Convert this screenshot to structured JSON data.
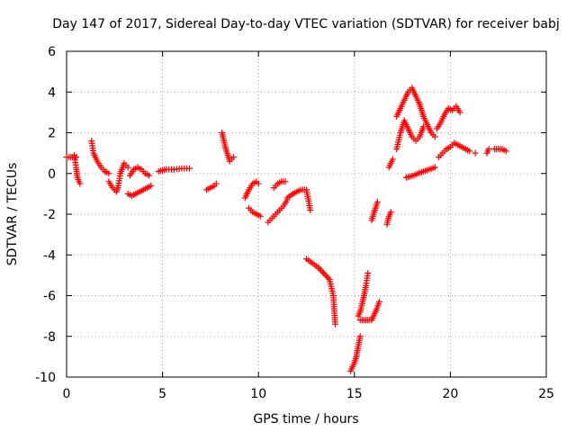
{
  "chart_data": {
    "type": "scatter",
    "title": "Day 147 of 2017, Sidereal Day-to-day VTEC variation (SDTVAR) for receiver babj",
    "xlabel": "GPS time / hours",
    "ylabel": "SDTVAR / TECUs",
    "xlim": [
      0,
      25
    ],
    "ylim": [
      -10,
      6
    ],
    "xticks": [
      0,
      5,
      10,
      15,
      20,
      25
    ],
    "yticks": [
      -10,
      -8,
      -6,
      -4,
      -2,
      0,
      2,
      4,
      6
    ],
    "grid": true,
    "marker": "+",
    "color": "#ff0000",
    "segments": [
      {
        "x": [
          0.0,
          0.3,
          0.5
        ],
        "y": [
          0.8,
          0.8,
          0.8
        ]
      },
      {
        "x": [
          0.4,
          0.5,
          0.55,
          0.6,
          0.65,
          0.7
        ],
        "y": [
          0.9,
          0.3,
          -0.1,
          -0.3,
          -0.4,
          -0.5
        ]
      },
      {
        "x": [
          1.3,
          1.4,
          1.6,
          1.8,
          2.0,
          2.2
        ],
        "y": [
          1.6,
          1.0,
          0.6,
          0.3,
          0.1,
          0.0
        ]
      },
      {
        "x": [
          2.2,
          2.4,
          2.6,
          2.7,
          2.8,
          3.0,
          3.2
        ],
        "y": [
          -0.4,
          -0.7,
          -0.9,
          -0.6,
          0.0,
          0.5,
          0.3
        ]
      },
      {
        "x": [
          3.2,
          3.4,
          3.6,
          3.8,
          4.0,
          4.2,
          4.4
        ],
        "y": [
          -1.0,
          -1.1,
          -1.0,
          -0.9,
          -0.8,
          -0.7,
          -0.6
        ]
      },
      {
        "x": [
          3.3,
          3.5,
          3.7,
          3.9,
          4.1,
          4.3
        ],
        "y": [
          -0.1,
          0.2,
          0.3,
          0.2,
          0.0,
          -0.1
        ]
      },
      {
        "x": [
          4.8,
          5.2,
          5.6,
          6.0,
          6.4
        ],
        "y": [
          0.1,
          0.2,
          0.2,
          0.25,
          0.25
        ]
      },
      {
        "x": [
          7.3,
          7.5,
          7.7,
          7.8
        ],
        "y": [
          -0.8,
          -0.7,
          -0.6,
          -0.5
        ]
      },
      {
        "x": [
          8.1,
          8.2,
          8.3,
          8.4,
          8.5,
          8.6,
          8.7
        ],
        "y": [
          2.0,
          1.6,
          1.2,
          0.9,
          0.6,
          0.7,
          0.8
        ]
      },
      {
        "x": [
          9.3,
          9.5,
          9.7,
          9.9,
          10.0
        ],
        "y": [
          -1.2,
          -0.8,
          -0.5,
          -0.4,
          -0.5
        ]
      },
      {
        "x": [
          9.5,
          9.7,
          9.9,
          10.1
        ],
        "y": [
          -1.7,
          -1.9,
          -2.0,
          -2.1
        ]
      },
      {
        "x": [
          10.5,
          10.7,
          10.9,
          11.1,
          11.3,
          11.5
        ],
        "y": [
          -2.4,
          -2.2,
          -2.0,
          -1.8,
          -1.6,
          -1.3
        ]
      },
      {
        "x": [
          10.8,
          11.0,
          11.2,
          11.4
        ],
        "y": [
          -0.7,
          -0.5,
          -0.4,
          -0.4
        ]
      },
      {
        "x": [
          11.5,
          11.8,
          12.0,
          12.2,
          12.5,
          12.7
        ],
        "y": [
          -1.2,
          -1.0,
          -0.9,
          -0.8,
          -0.8,
          -1.8
        ]
      },
      {
        "x": [
          12.5,
          12.8,
          13.1,
          13.4,
          13.7,
          13.9,
          14.0
        ],
        "y": [
          -4.2,
          -4.4,
          -4.6,
          -4.9,
          -5.2,
          -6.0,
          -7.4
        ]
      },
      {
        "x": [
          14.8,
          14.9,
          15.0,
          15.1,
          15.2,
          15.3
        ],
        "y": [
          -9.7,
          -9.5,
          -9.3,
          -9.0,
          -8.5,
          -8.0
        ]
      },
      {
        "x": [
          15.2,
          15.3,
          15.4,
          15.5,
          15.6,
          15.7
        ],
        "y": [
          -7.0,
          -6.8,
          -6.4,
          -6.0,
          -5.5,
          -4.9
        ]
      },
      {
        "x": [
          15.3,
          15.6,
          15.9,
          16.1,
          16.3
        ],
        "y": [
          -7.2,
          -7.2,
          -7.2,
          -6.8,
          -6.3
        ]
      },
      {
        "x": [
          15.9,
          16.0,
          16.1,
          16.2
        ],
        "y": [
          -2.3,
          -2.0,
          -1.7,
          -1.4
        ]
      },
      {
        "x": [
          16.7,
          16.8,
          16.9
        ],
        "y": [
          -2.5,
          -2.1,
          -1.9
        ]
      },
      {
        "x": [
          16.8,
          16.9,
          17.0
        ],
        "y": [
          0.3,
          0.5,
          0.7
        ]
      },
      {
        "x": [
          17.2,
          17.4,
          17.6,
          17.8,
          18.0,
          18.2,
          18.4
        ],
        "y": [
          2.8,
          3.2,
          3.6,
          4.0,
          4.2,
          3.8,
          3.4
        ]
      },
      {
        "x": [
          17.2,
          17.4,
          17.6,
          17.8,
          18.0,
          18.2,
          18.4,
          18.6
        ],
        "y": [
          1.2,
          2.0,
          2.6,
          2.2,
          1.8,
          1.6,
          1.8,
          2.3
        ]
      },
      {
        "x": [
          18.4,
          18.6,
          18.8,
          19.0,
          19.2
        ],
        "y": [
          3.4,
          2.8,
          2.4,
          2.0,
          1.8
        ]
      },
      {
        "x": [
          17.7,
          17.9,
          18.1,
          18.3,
          18.6,
          18.9,
          19.2
        ],
        "y": [
          -0.2,
          -0.15,
          -0.1,
          0.0,
          0.1,
          0.2,
          0.3
        ]
      },
      {
        "x": [
          19.3,
          19.5,
          19.7,
          19.9,
          20.1,
          20.3,
          20.5
        ],
        "y": [
          2.2,
          2.5,
          2.9,
          3.2,
          3.1,
          3.3,
          3.0
        ]
      },
      {
        "x": [
          19.4,
          19.6,
          19.8,
          20.0,
          20.2,
          20.4,
          20.6,
          20.8,
          21.0
        ],
        "y": [
          0.8,
          1.0,
          1.2,
          1.3,
          1.5,
          1.4,
          1.3,
          1.2,
          1.1
        ]
      },
      {
        "x": [
          21.3
        ],
        "y": [
          1.0
        ]
      },
      {
        "x": [
          21.9,
          22.0
        ],
        "y": [
          1.0,
          1.2
        ]
      },
      {
        "x": [
          22.3,
          22.5,
          22.7,
          22.9
        ],
        "y": [
          1.2,
          1.2,
          1.2,
          1.1
        ]
      }
    ]
  }
}
